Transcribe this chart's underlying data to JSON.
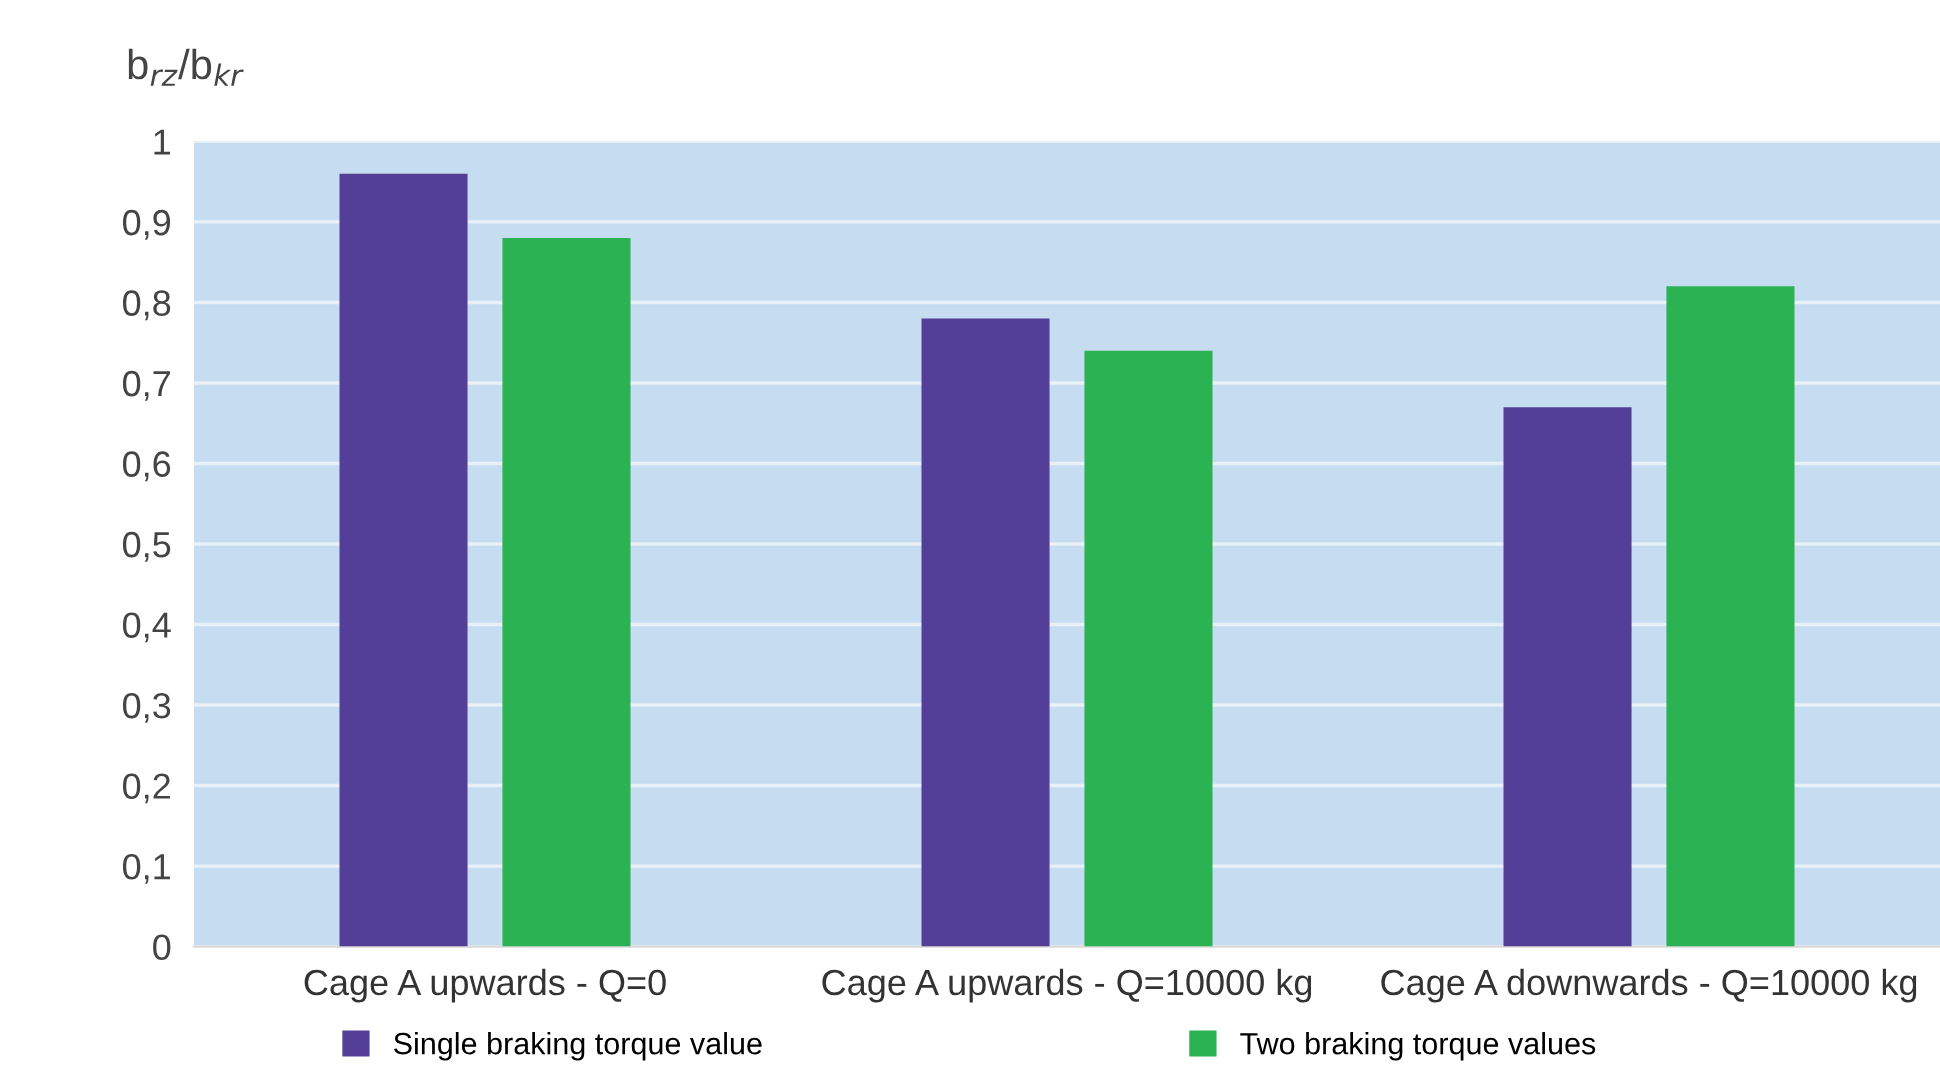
{
  "chart_data": {
    "type": "bar",
    "ylabel": "b$_{rz}$/b$_{kr}$",
    "categories": [
      "Cage A upwards - Q=0",
      "Cage A upwards - Q=10000 kg",
      "Cage A downwards - Q=10000 kg"
    ],
    "series": [
      {
        "name": "Single braking torque value",
        "color": "#543f98",
        "values": [
          0.96,
          0.78,
          0.67
        ]
      },
      {
        "name": "Two braking torque values",
        "color": "#2bb253",
        "values": [
          0.88,
          0.74,
          0.82
        ]
      }
    ],
    "ylim": [
      0,
      1
    ],
    "yticks": [
      0,
      {
        "value": 0.1,
        "label": "0,1"
      },
      {
        "value": 0.2,
        "label": "0,2"
      },
      {
        "value": 0.3,
        "label": "0,3"
      },
      {
        "value": 0.4,
        "label": "0,4"
      },
      {
        "value": 0.5,
        "label": "0,5"
      },
      {
        "value": 0.6,
        "label": "0,6"
      },
      {
        "value": 0.7,
        "label": "0,7"
      },
      {
        "value": 0.8,
        "label": "0,8"
      },
      {
        "value": 0.9,
        "label": "0,9"
      },
      1
    ],
    "grid": "y",
    "legend": "bottom"
  }
}
